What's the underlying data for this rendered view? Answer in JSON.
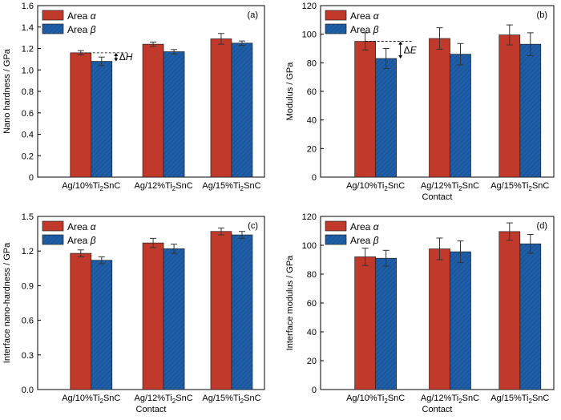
{
  "colors": {
    "alpha": "#c0392b",
    "beta": "#1f5ea8",
    "axis": "#000000"
  },
  "chart_data": [
    {
      "panel_label": "(a)",
      "type": "bar",
      "categories": [
        "Ag/10%Ti2SnC",
        "Ag/12%Ti2SnC",
        "Ag/15%Ti2SnC"
      ],
      "category_labels": [
        {
          "pre": "Ag/10%Ti",
          "sub": "2",
          "post": "SnC"
        },
        {
          "pre": "Ag/12%Ti",
          "sub": "2",
          "post": "SnC"
        },
        {
          "pre": "Ag/15%Ti",
          "sub": "2",
          "post": "SnC"
        }
      ],
      "xlabel": "",
      "ylabel": "Nano hardness / GPa",
      "ylim": [
        0,
        1.6
      ],
      "yticks": [
        0,
        0.2,
        0.4,
        0.6,
        0.8,
        1.0,
        1.2,
        1.4,
        1.6
      ],
      "ytick_labels": [
        "0",
        "0.2",
        "0.4",
        "0.6",
        "0.8",
        "1.0",
        "1.2",
        "1.4",
        "1.6"
      ],
      "series": [
        {
          "name": "Area α",
          "legend_base": "Area ",
          "legend_symbol": "α",
          "values": [
            1.16,
            1.24,
            1.29
          ],
          "errors": [
            0.02,
            0.02,
            0.05
          ]
        },
        {
          "name": "Area β",
          "legend_base": "Area ",
          "legend_symbol": "β",
          "values": [
            1.08,
            1.17,
            1.25
          ],
          "errors": [
            0.04,
            0.02,
            0.02
          ]
        }
      ],
      "annotation": {
        "delta": "Δ",
        "symbol": "H",
        "from": 1.16,
        "to": 1.08
      }
    },
    {
      "panel_label": "(b)",
      "type": "bar",
      "categories": [
        "Ag/10%Ti2SnC",
        "Ag/12%Ti2SnC",
        "Ag/15%Ti2SnC"
      ],
      "category_labels": [
        {
          "pre": "Ag/10%Ti",
          "sub": "2",
          "post": "SnC"
        },
        {
          "pre": "Ag/12%Ti",
          "sub": "2",
          "post": "SnC"
        },
        {
          "pre": "Ag/15%Ti",
          "sub": "2",
          "post": "SnC"
        }
      ],
      "xlabel": "Contact",
      "ylabel": "Modulus / GPa",
      "ylim": [
        0,
        120
      ],
      "yticks": [
        0,
        20,
        40,
        60,
        80,
        100,
        120
      ],
      "ytick_labels": [
        "0",
        "20",
        "40",
        "60",
        "80",
        "100",
        "120"
      ],
      "series": [
        {
          "name": "Area α",
          "legend_base": "Area ",
          "legend_symbol": "α",
          "values": [
            95,
            97,
            99.5
          ],
          "errors": [
            6,
            7.5,
            7
          ]
        },
        {
          "name": "Area β",
          "legend_base": "Area ",
          "legend_symbol": "β",
          "values": [
            83,
            86,
            93
          ],
          "errors": [
            7,
            7.5,
            8
          ]
        }
      ],
      "annotation": {
        "delta": "Δ",
        "symbol": "E",
        "from": 95,
        "to": 83
      }
    },
    {
      "panel_label": "(c)",
      "type": "bar",
      "categories": [
        "Ag/10%Ti2SnC",
        "Ag/12%Ti2SnC",
        "Ag/15%Ti2SnC"
      ],
      "category_labels": [
        {
          "pre": "Ag/10%Ti",
          "sub": "2",
          "post": "SnC"
        },
        {
          "pre": "Ag/12%Ti",
          "sub": "2",
          "post": "SnC"
        },
        {
          "pre": "Ag/15%Ti",
          "sub": "2",
          "post": "SnC"
        }
      ],
      "xlabel": "Contact",
      "ylabel": "Interface nano-hardness / GPa",
      "ylim": [
        0,
        1.5
      ],
      "yticks": [
        0,
        0.3,
        0.6,
        0.9,
        1.2,
        1.5
      ],
      "ytick_labels": [
        "0.0",
        "0.3",
        "0.6",
        "0.9",
        "1.2",
        "1.5"
      ],
      "series": [
        {
          "name": "Area α",
          "legend_base": "Area ",
          "legend_symbol": "α",
          "values": [
            1.18,
            1.27,
            1.37
          ],
          "errors": [
            0.03,
            0.04,
            0.03
          ]
        },
        {
          "name": "Area β",
          "legend_base": "Area ",
          "legend_symbol": "β",
          "values": [
            1.12,
            1.22,
            1.34
          ],
          "errors": [
            0.03,
            0.04,
            0.03
          ]
        }
      ],
      "annotation": null
    },
    {
      "panel_label": "(d)",
      "type": "bar",
      "categories": [
        "Ag/10%Ti2SnC",
        "Ag/12%Ti2SnC",
        "Ag/15%Ti2SnC"
      ],
      "category_labels": [
        {
          "pre": "Ag/10%Ti",
          "sub": "2",
          "post": "SnC"
        },
        {
          "pre": "Ag/12%Ti",
          "sub": "2",
          "post": "SnC"
        },
        {
          "pre": "Ag/15%Ti",
          "sub": "2",
          "post": "SnC"
        }
      ],
      "xlabel": "Contact",
      "ylabel": "Interface modulus / GPa",
      "ylim": [
        0,
        120
      ],
      "yticks": [
        0,
        20,
        40,
        60,
        80,
        100,
        120
      ],
      "ytick_labels": [
        "0",
        "20",
        "40",
        "60",
        "80",
        "100",
        "120"
      ],
      "series": [
        {
          "name": "Area α",
          "legend_base": "Area ",
          "legend_symbol": "α",
          "values": [
            92,
            97.5,
            109.5
          ],
          "errors": [
            6,
            7.5,
            6
          ]
        },
        {
          "name": "Area β",
          "legend_base": "Area ",
          "legend_symbol": "β",
          "values": [
            91,
            95.5,
            101
          ],
          "errors": [
            5.5,
            7.5,
            6.5
          ]
        }
      ],
      "annotation": null
    }
  ]
}
